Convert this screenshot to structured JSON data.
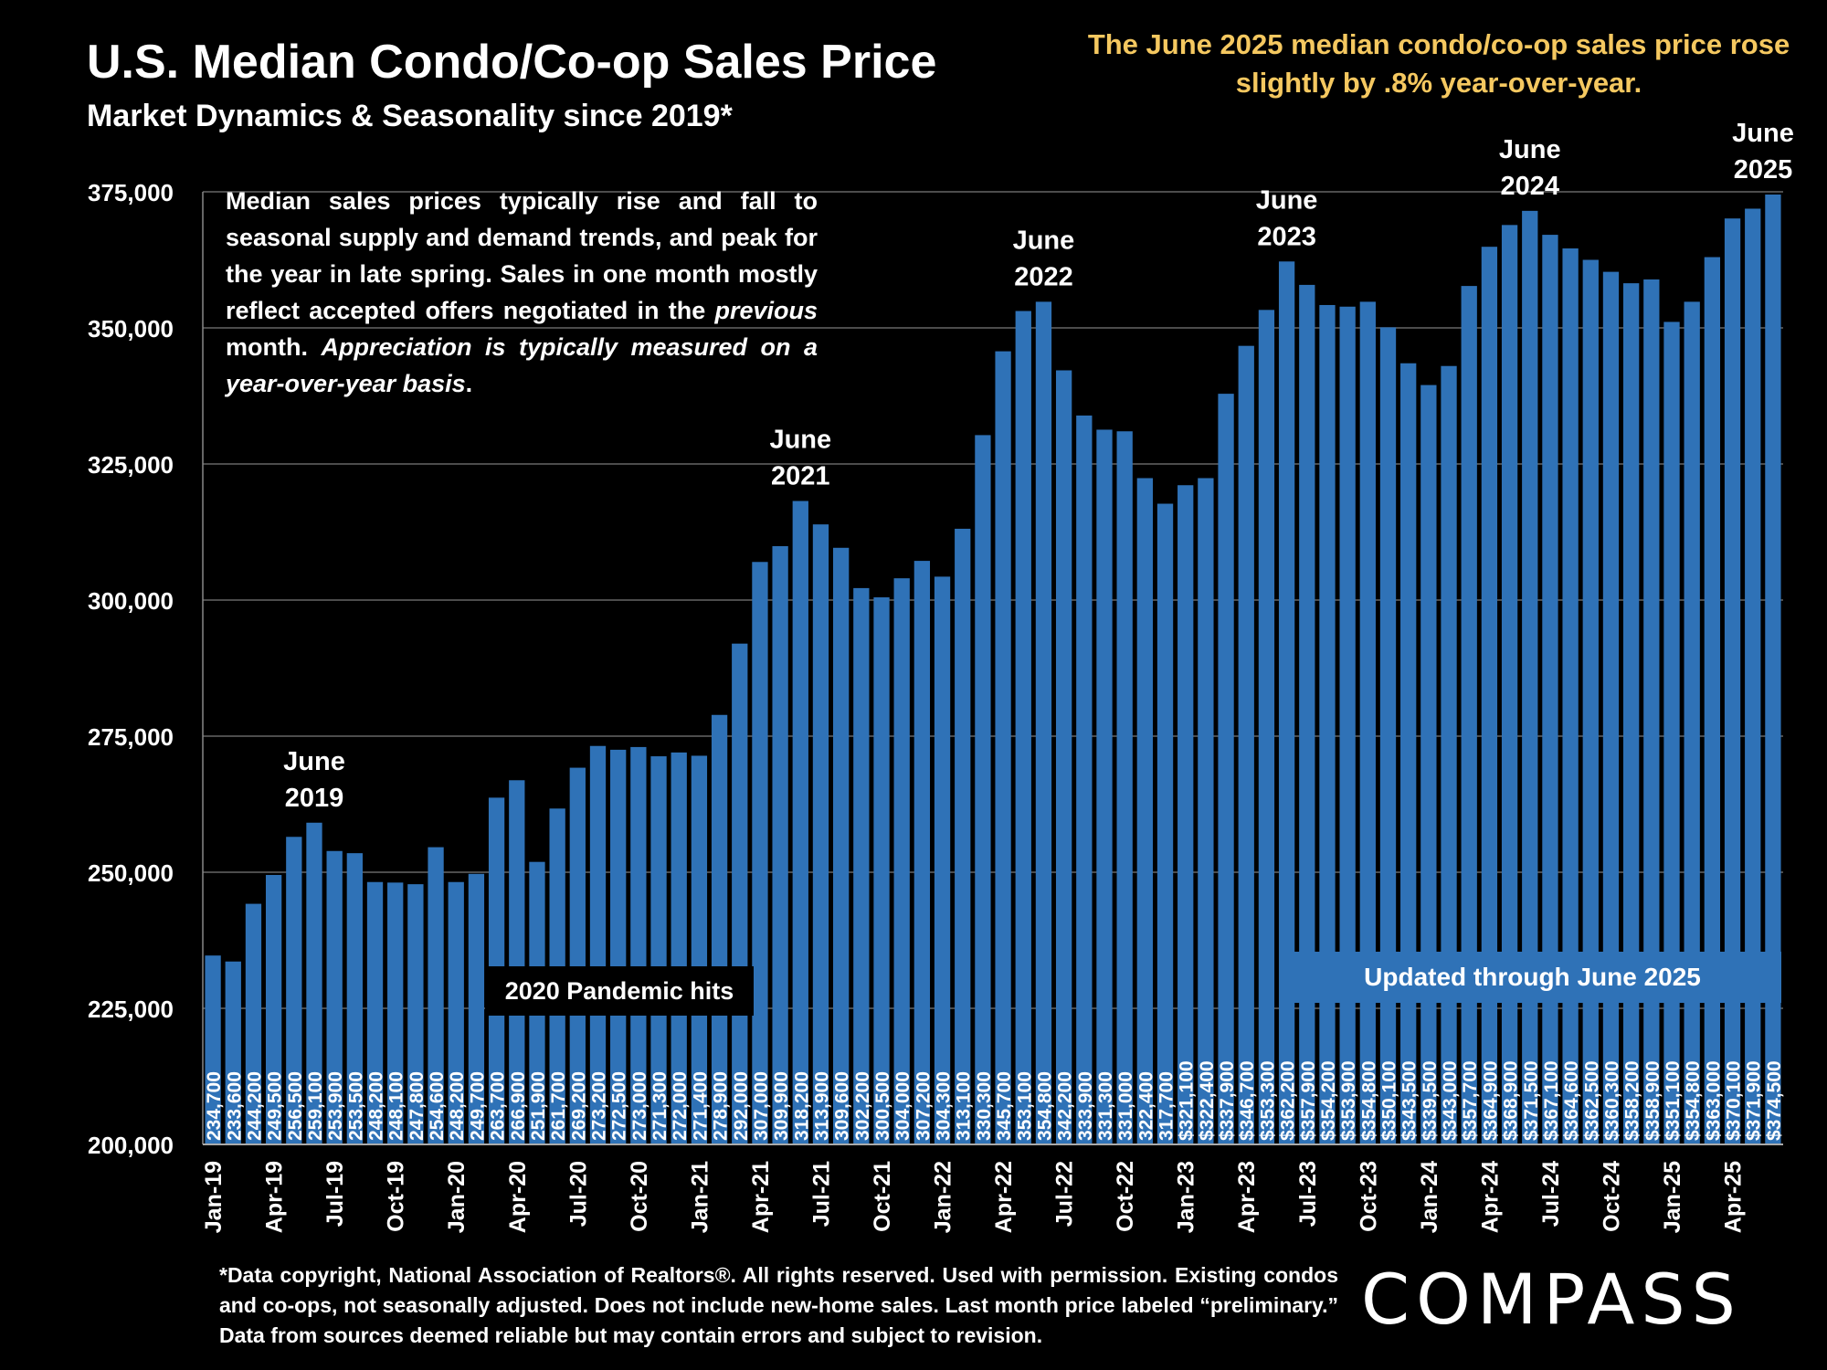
{
  "title": "U.S. Median Condo/Co-op Sales Price",
  "subtitle": "Market Dynamics & Seasonality since 2019*",
  "headline": "The June 2025 median condo/co-op sales price rose slightly by .8% year-over-year.",
  "callout": {
    "p1": "Median sales prices typically rise and fall to seasonal supply and demand trends, and peak for the year in late spring. Sales in one month mostly reflect accepted offers negotiated in the",
    "em1": "previous",
    "p2": "month.",
    "em2": "Appreciation is typically measured on a year-over-year basis",
    "p3": "."
  },
  "footnote": "*Data copyright, National Association of Realtors®. All rights reserved. Used with permission. Existing condos and co-ops, not seasonally adjusted. Does not include new-home sales. Last month price labeled “preliminary.” Data from sources deemed reliable but may contain errors and subject to revision.",
  "logo": "COMPASS",
  "colors": {
    "bar": "#2f72b7",
    "headline": "#f5c860",
    "background": "#000000",
    "grid": "#666666"
  },
  "chart_data": {
    "type": "bar",
    "ylim": [
      200000,
      375000
    ],
    "yticks": [
      "200,000",
      "225,000",
      "250,000",
      "275,000",
      "300,000",
      "325,000",
      "350,000",
      "375,000"
    ],
    "ytick_values": [
      200000,
      225000,
      250000,
      275000,
      300000,
      325000,
      350000,
      375000
    ],
    "grid": true,
    "xtick_labels": [
      {
        "index": 0,
        "label": "Jan-19"
      },
      {
        "index": 3,
        "label": "Apr-19"
      },
      {
        "index": 6,
        "label": "Jul-19"
      },
      {
        "index": 9,
        "label": "Oct-19"
      },
      {
        "index": 12,
        "label": "Jan-20"
      },
      {
        "index": 15,
        "label": "Apr-20"
      },
      {
        "index": 18,
        "label": "Jul-20"
      },
      {
        "index": 21,
        "label": "Oct-20"
      },
      {
        "index": 24,
        "label": "Jan-21"
      },
      {
        "index": 27,
        "label": "Apr-21"
      },
      {
        "index": 30,
        "label": "Jul-21"
      },
      {
        "index": 33,
        "label": "Oct-21"
      },
      {
        "index": 36,
        "label": "Jan-22"
      },
      {
        "index": 39,
        "label": "Apr-22"
      },
      {
        "index": 42,
        "label": "Jul-22"
      },
      {
        "index": 45,
        "label": "Oct-22"
      },
      {
        "index": 48,
        "label": "Jan-23"
      },
      {
        "index": 51,
        "label": "Apr-23"
      },
      {
        "index": 54,
        "label": "Jul-23"
      },
      {
        "index": 57,
        "label": "Oct-23"
      },
      {
        "index": 60,
        "label": "Jan-24"
      },
      {
        "index": 63,
        "label": "Apr-24"
      },
      {
        "index": 66,
        "label": "Jul-24"
      },
      {
        "index": 69,
        "label": "Oct-24"
      },
      {
        "index": 72,
        "label": "Jan-25"
      },
      {
        "index": 75,
        "label": "Apr-25"
      }
    ],
    "values": [
      234700,
      233600,
      244200,
      249500,
      256500,
      259100,
      253900,
      253500,
      248200,
      248100,
      247800,
      254600,
      248200,
      249700,
      263700,
      266900,
      251900,
      261700,
      269200,
      273200,
      272500,
      273000,
      271300,
      272000,
      271400,
      278900,
      292000,
      307000,
      309900,
      318200,
      313900,
      309600,
      302200,
      300500,
      304000,
      307200,
      304300,
      313100,
      330300,
      345700,
      353100,
      354800,
      342200,
      333900,
      331300,
      331000,
      322400,
      317700,
      321100,
      322400,
      337900,
      346700,
      353300,
      362200,
      357900,
      354200,
      353900,
      354800,
      350100,
      343500,
      339500,
      343000,
      357700,
      364900,
      368900,
      371500,
      367100,
      364600,
      362500,
      360300,
      358200,
      358900,
      351100,
      354800,
      363000,
      370100,
      371900,
      374500
    ],
    "data_labels": [
      "234,700",
      "233,600",
      "244,200",
      "249,500",
      "256,500",
      "259,100",
      "253,900",
      "253,500",
      "248,200",
      "248,100",
      "247,800",
      "254,600",
      "248,200",
      "249,700",
      "263,700",
      "266,900",
      "251,900",
      "261,700",
      "269,200",
      "273,200",
      "272,500",
      "273,000",
      "271,300",
      "272,000",
      "271,400",
      "278,900",
      "292,000",
      "307,000",
      "309,900",
      "318,200",
      "313,900",
      "309,600",
      "302,200",
      "300,500",
      "304,000",
      "307,200",
      "304,300",
      "313,100",
      "330,300",
      "345,700",
      "353,100",
      "354,800",
      "342,200",
      "333,900",
      "331,300",
      "331,000",
      "322,400",
      "317,700",
      "$321,100",
      "$322,400",
      "$337,900",
      "$346,700",
      "$353,300",
      "$362,200",
      "$357,900",
      "$354,200",
      "$353,900",
      "$354,800",
      "$350,100",
      "$343,500",
      "$339,500",
      "$343,000",
      "$357,700",
      "$364,900",
      "$368,900",
      "$371,500",
      "$367,100",
      "$364,600",
      "$362,500",
      "$360,300",
      "$358,200",
      "$358,900",
      "$351,100",
      "$354,800",
      "$363,000",
      "$370,100",
      "$371,900",
      "$374,500"
    ],
    "annotations": [
      {
        "index": 5,
        "line1": "June",
        "line2": "2019"
      },
      {
        "index": 29,
        "line1": "June",
        "line2": "2021"
      },
      {
        "index": 41,
        "line1": "June",
        "line2": "2022"
      },
      {
        "index": 53,
        "line1": "June",
        "line2": "2023"
      },
      {
        "index": 65,
        "line1": "June",
        "line2": "2024"
      },
      {
        "index": 77,
        "line1": "June",
        "line2": "2025"
      }
    ],
    "pandemic_label": "2020 Pandemic hits",
    "updated_label": "Updated through June 2025"
  }
}
